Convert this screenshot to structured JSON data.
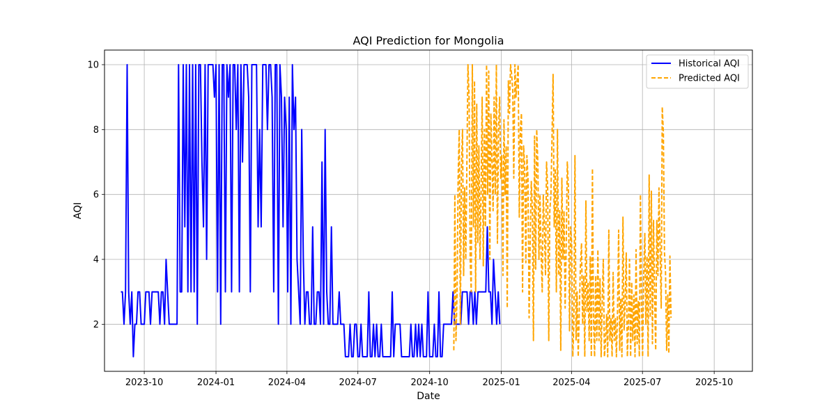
{
  "chart_data": {
    "type": "line",
    "title": "AQI Prediction for Mongolia",
    "xlabel": "Date",
    "ylabel": "AQI",
    "xlim": [
      "2023-08-11",
      "2025-11-19"
    ],
    "ylim": [
      0.55,
      10.45
    ],
    "grid": true,
    "legend_position": "top-right",
    "x_ticks": [
      "2023-10",
      "2024-01",
      "2024-04",
      "2024-07",
      "2024-10",
      "2025-01",
      "2025-04",
      "2025-07",
      "2025-10"
    ],
    "y_ticks": [
      2,
      4,
      6,
      8,
      10
    ],
    "series": [
      {
        "name": "Historical AQI",
        "color": "#0000ff",
        "style": "solid",
        "start": "2023-09-01",
        "step_days": 2,
        "values": [
          3,
          3,
          2,
          3,
          10,
          3,
          2,
          3,
          1,
          2,
          2,
          3,
          3,
          2,
          2,
          2,
          3,
          3,
          3,
          2,
          3,
          3,
          3,
          3,
          3,
          2,
          3,
          3,
          2,
          4,
          3,
          2,
          2,
          2,
          2,
          2,
          2,
          10,
          3,
          3,
          10,
          5,
          10,
          3,
          10,
          3,
          10,
          3,
          10,
          2,
          10,
          10,
          7,
          5,
          10,
          4,
          10,
          10,
          10,
          10,
          9,
          10,
          3,
          10,
          2,
          10,
          10,
          3,
          10,
          9,
          10,
          3,
          10,
          10,
          8,
          10,
          3,
          10,
          7,
          10,
          10,
          10,
          9,
          3,
          10,
          10,
          10,
          10,
          5,
          8,
          5,
          10,
          10,
          10,
          8,
          10,
          10,
          9,
          3,
          10,
          10,
          2,
          10,
          9,
          5,
          9,
          8,
          3,
          9,
          2,
          10,
          8,
          9,
          4,
          3,
          2,
          8,
          4,
          2,
          3,
          3,
          2,
          2,
          5,
          2,
          2,
          3,
          3,
          2,
          7,
          2,
          8,
          3,
          2,
          2,
          5,
          2,
          2,
          2,
          2,
          3,
          2,
          2,
          2,
          1,
          1,
          1,
          2,
          1,
          1,
          2,
          2,
          1,
          1,
          2,
          1,
          1,
          1,
          1,
          3,
          1,
          1,
          2,
          1,
          2,
          1,
          1,
          2,
          1,
          1,
          1,
          1,
          1,
          1,
          3,
          1,
          2,
          2,
          2,
          2,
          1,
          1,
          1,
          1,
          1,
          1,
          2,
          1,
          1,
          2,
          1,
          2,
          1,
          2,
          1,
          1,
          1,
          3,
          1,
          1,
          1,
          2,
          1,
          1,
          3,
          1,
          1,
          2,
          2,
          2,
          2,
          2,
          2,
          3,
          2,
          2,
          2,
          2,
          2,
          3,
          3,
          3,
          3,
          2,
          3,
          3,
          2,
          3,
          2,
          3,
          3,
          3,
          3,
          3,
          3,
          5,
          3,
          3,
          2,
          4,
          3,
          2,
          3,
          2
        ]
      },
      {
        "name": "Predicted AQI",
        "color": "#ffa500",
        "style": "dashed",
        "start": "2024-11-01",
        "step_days": 1.4,
        "values": [
          1.2,
          6,
          1.5,
          3,
          6.5,
          8,
          2,
          6.8,
          8,
          3.5,
          6.2,
          4,
          7,
          10,
          9,
          4,
          3,
          10,
          5,
          9.5,
          3,
          8.8,
          4.5,
          7.5,
          4,
          6,
          9,
          3.8,
          8,
          5,
          10,
          6,
          9.8,
          4,
          8.5,
          7,
          5.5,
          9,
          6,
          10,
          4.5,
          8,
          9,
          6.5,
          7.2,
          3.5,
          8.3,
          6,
          7.5,
          2.5,
          9.5,
          8.5,
          10,
          9.7,
          9.2,
          6.5,
          10,
          9,
          9.5,
          10,
          5.3,
          8,
          8.5,
          3,
          7.5,
          6.8,
          3.9,
          7.2,
          6.5,
          2.2,
          4.5,
          6.4,
          5.5,
          1.5,
          7.8,
          3.7,
          8,
          7,
          4,
          6,
          4.2,
          3,
          6,
          5,
          3.5,
          7,
          6.2,
          1.5,
          5.5,
          6,
          7.8,
          9.7,
          5,
          6.8,
          3,
          8,
          3.5,
          5.5,
          1.2,
          6.5,
          4,
          5.5,
          2.5,
          4.5,
          7,
          6.2,
          1.8,
          5,
          4.5,
          1,
          2,
          7.2,
          1.5,
          3,
          1,
          2.5,
          3.8,
          4.5,
          2,
          3.5,
          1,
          5.8,
          2.4,
          3.3,
          1.5,
          4.1,
          1,
          6.8,
          2.2,
          1,
          3.5,
          1.5,
          4.3,
          1.5,
          3.4,
          1,
          2.8,
          4,
          1,
          1.5,
          2.3,
          1,
          4.9,
          1.5,
          2.2,
          1,
          3.6,
          1.5,
          2.2,
          1,
          2.4,
          4.9,
          1.2,
          2.8,
          1,
          5.3,
          1.8,
          2.7,
          4.2,
          1,
          2,
          4,
          1,
          3.3,
          1.5,
          2.9,
          1,
          4.3,
          1.4,
          2.7,
          1,
          6,
          2.5,
          1,
          3.5,
          4.8,
          2,
          4.1,
          1,
          6.6,
          2.2,
          6.1,
          1.4,
          5.2,
          2.8,
          1.2,
          5.2,
          3.5,
          6.2,
          4.3,
          2.5,
          8.7,
          7.9,
          4.2,
          3.6,
          1.2,
          2.9,
          1.1,
          4.1,
          2.2
        ]
      }
    ]
  }
}
